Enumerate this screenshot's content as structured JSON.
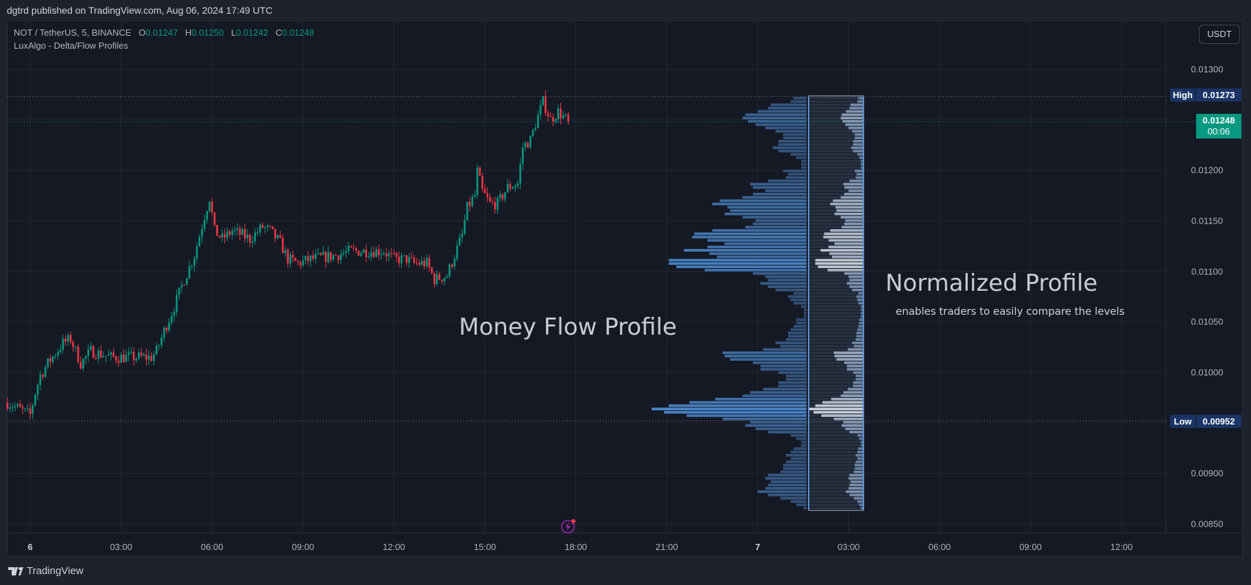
{
  "header": {
    "published": "dgtrd published on TradingView.com, Aug 06, 2024 17:49 UTC"
  },
  "legend": {
    "symbol": "NOT / TetherUS, 5, BINANCE",
    "o_label": "O",
    "o": "0.01247",
    "h_label": "H",
    "h": "0.01250",
    "l_label": "L",
    "l": "0.01242",
    "c_label": "C",
    "c": "0.01248",
    "indicator": "LuxAlgo - Delta/Flow Profiles"
  },
  "currency_button": "USDT",
  "price_axis": {
    "labels": [
      "0.01300",
      "0.01200",
      "0.01150",
      "0.01100",
      "0.01050",
      "0.01000",
      "0.00900",
      "0.00850"
    ],
    "high_label": "High",
    "high_value": "0.01273",
    "low_label": "Low",
    "low_value": "0.00952",
    "current_price": "0.01248",
    "countdown": "00:06"
  },
  "time_axis": {
    "labels": [
      "6",
      "03:00",
      "06:00",
      "09:00",
      "12:00",
      "15:00",
      "18:00",
      "21:00",
      "7",
      "03:00",
      "06:00",
      "09:00",
      "12:00"
    ]
  },
  "annotations": {
    "money_flow": "Money Flow Profile",
    "normalized": "Normalized Profile",
    "normalized_sub": "enables traders to easily compare the levels"
  },
  "branding": "TradingView",
  "colors": {
    "up": "#089981",
    "down": "#f23645",
    "profile": "#4a86c8",
    "current": "#089981",
    "tag": "#1b3466"
  },
  "chart_data": {
    "type": "candlestick",
    "interval_minutes": 5,
    "ylim": [
      0.0082,
      0.0135
    ],
    "grid": true,
    "high": 0.01273,
    "low": 0.00952,
    "last": 0.01248,
    "close_path": [
      [
        "2024-08-05 23:15",
        0.0097
      ],
      [
        "2024-08-06 00:00",
        0.00958
      ],
      [
        "2024-08-06 00:10",
        0.0098
      ],
      [
        "2024-08-06 00:20",
        0.00997
      ],
      [
        "2024-08-06 00:35",
        0.01009
      ],
      [
        "2024-08-06 01:05",
        0.01029
      ],
      [
        "2024-08-06 01:20",
        0.01033
      ],
      [
        "2024-08-06 01:40",
        0.01009
      ],
      [
        "2024-08-06 02:00",
        0.01021
      ],
      [
        "2024-08-06 02:40",
        0.01015
      ],
      [
        "2024-08-06 04:00",
        0.01015
      ],
      [
        "2024-08-06 04:10",
        0.01021
      ],
      [
        "2024-08-06 04:25",
        0.01041
      ],
      [
        "2024-08-06 04:45",
        0.01065
      ],
      [
        "2024-08-06 05:05",
        0.01092
      ],
      [
        "2024-08-06 05:25",
        0.01116
      ],
      [
        "2024-08-06 05:45",
        0.01155
      ],
      [
        "2024-08-06 05:55",
        0.01173
      ],
      [
        "2024-08-06 06:05",
        0.0114
      ],
      [
        "2024-08-06 06:20",
        0.01132
      ],
      [
        "2024-08-06 06:40",
        0.0114
      ],
      [
        "2024-08-06 07:00",
        0.01136
      ],
      [
        "2024-08-06 07:15",
        0.01132
      ],
      [
        "2024-08-06 07:40",
        0.01144
      ],
      [
        "2024-08-06 07:55",
        0.0114
      ],
      [
        "2024-08-06 08:15",
        0.01128
      ],
      [
        "2024-08-06 08:30",
        0.01112
      ],
      [
        "2024-08-06 08:50",
        0.01108
      ],
      [
        "2024-08-06 09:15",
        0.01112
      ],
      [
        "2024-08-06 10:05",
        0.01116
      ],
      [
        "2024-08-06 10:35",
        0.0112
      ],
      [
        "2024-08-06 11:05",
        0.0112
      ],
      [
        "2024-08-06 11:40",
        0.0112
      ],
      [
        "2024-08-06 12:00",
        0.01112
      ],
      [
        "2024-08-06 12:25",
        0.01112
      ],
      [
        "2024-08-06 12:40",
        0.01108
      ],
      [
        "2024-08-06 13:05",
        0.01108
      ],
      [
        "2024-08-06 13:20",
        0.01092
      ],
      [
        "2024-08-06 13:45",
        0.01096
      ],
      [
        "2024-08-06 14:00",
        0.01116
      ],
      [
        "2024-08-06 14:15",
        0.01136
      ],
      [
        "2024-08-06 14:25",
        0.01163
      ],
      [
        "2024-08-06 14:40",
        0.01175
      ],
      [
        "2024-08-06 14:45",
        0.01199
      ],
      [
        "2024-08-06 14:55",
        0.01179
      ],
      [
        "2024-08-06 15:10",
        0.01167
      ],
      [
        "2024-08-06 15:25",
        0.01167
      ],
      [
        "2024-08-06 15:45",
        0.01183
      ],
      [
        "2024-08-06 16:05",
        0.01187
      ],
      [
        "2024-08-06 16:15",
        0.01223
      ],
      [
        "2024-08-06 16:30",
        0.0123
      ],
      [
        "2024-08-06 16:40",
        0.01246
      ],
      [
        "2024-08-06 16:55",
        0.01268
      ],
      [
        "2024-08-06 17:10",
        0.0125
      ],
      [
        "2024-08-06 17:25",
        0.01258
      ],
      [
        "2024-08-06 17:45",
        0.01248
      ]
    ],
    "profile": {
      "price_top": 0.01273,
      "price_bottom": 0.00864,
      "money_flow_rows_top_to_bottom": [
        19,
        23,
        52,
        56,
        71,
        89,
        93,
        85,
        74,
        60,
        45,
        34,
        34,
        41,
        41,
        49,
        41,
        23,
        15,
        8,
        8,
        8,
        34,
        27,
        30,
        56,
        82,
        78,
        60,
        78,
        93,
        126,
        137,
        115,
        111,
        119,
        93,
        74,
        78,
        89,
        137,
        163,
        166,
        144,
        119,
        144,
        178,
        141,
        130,
        200,
        200,
        189,
        148,
        78,
        60,
        56,
        67,
        56,
        45,
        19,
        27,
        23,
        19,
        8,
        4,
        4,
        4,
        15,
        15,
        19,
        23,
        27,
        27,
        30,
        45,
        38,
        63,
        122,
        119,
        111,
        78,
        67,
        67,
        41,
        30,
        30,
        41,
        41,
        63,
        82,
        93,
        133,
        170,
        200,
        225,
        207,
        174,
        122,
        82,
        89,
        74,
        56,
        23,
        15,
        8,
        8,
        19,
        23,
        30,
        23,
        30,
        34,
        34,
        38,
        56,
        60,
        52,
        56,
        60,
        71,
        56,
        38,
        23,
        15,
        4
      ]
    }
  }
}
